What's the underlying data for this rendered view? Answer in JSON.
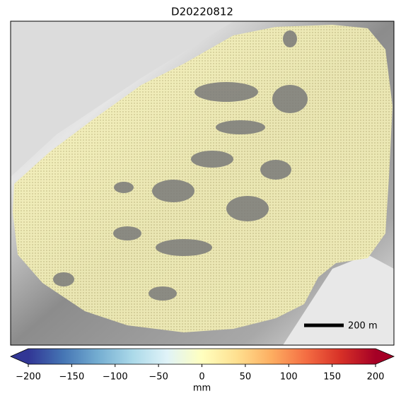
{
  "title": "D20220812",
  "scale_bar": {
    "label": "200 m"
  },
  "colorbar": {
    "label": "mm",
    "clim": [
      -200,
      200
    ],
    "ticks": [
      {
        "value": -200,
        "label": "−200"
      },
      {
        "value": -150,
        "label": "−150"
      },
      {
        "value": -100,
        "label": "−100"
      },
      {
        "value": -50,
        "label": "−50"
      },
      0,
      50,
      100,
      150,
      200
    ],
    "colormap": [
      "#313695",
      "#4575b4",
      "#74add1",
      "#abd9e9",
      "#e0f3f8",
      "#ffffbf",
      "#fee090",
      "#fdae61",
      "#f46d43",
      "#d73027",
      "#a50026"
    ]
  }
}
